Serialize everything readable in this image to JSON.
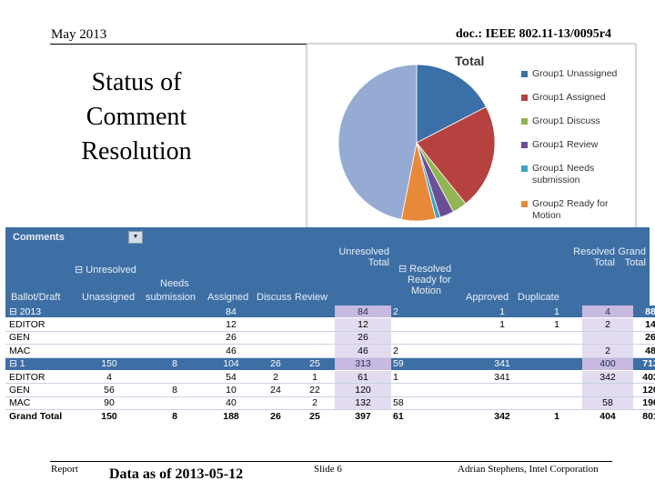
{
  "header": {
    "date": "May 2013",
    "doc": "doc.: IEEE 802.11-13/0095r4"
  },
  "title_lines": [
    "Status of",
    "Comment",
    "Resolution"
  ],
  "pie": {
    "title": "Total",
    "legend": [
      {
        "label": "Group1 Unassigned",
        "color": "#3a6fa8"
      },
      {
        "label": "Group1 Assigned",
        "color": "#b5423e"
      },
      {
        "label": "Group1 Discuss",
        "color": "#93b452"
      },
      {
        "label": "Group1 Review",
        "color": "#6a4f96"
      },
      {
        "label": "Group1 Needs submission",
        "color": "#3ea4bf"
      },
      {
        "label": "Group2 Ready for Motion",
        "color": "#e8893a"
      }
    ],
    "slices": [
      {
        "name": "Group1 Unassigned",
        "value": 150,
        "color": "#3a6fa8"
      },
      {
        "name": "Group1 Assigned",
        "value": 188,
        "color": "#b5423e"
      },
      {
        "name": "Group1 Discuss",
        "value": 26,
        "color": "#93b452"
      },
      {
        "name": "Group1 Review",
        "value": 25,
        "color": "#6a4f96"
      },
      {
        "name": "Group1 Needs submission",
        "value": 8,
        "color": "#3ea4bf"
      },
      {
        "name": "Group2 Ready for Motion",
        "value": 61,
        "color": "#e8893a"
      },
      {
        "name": "Resolved",
        "value": 404,
        "color": "#95abd3"
      }
    ]
  },
  "pivot": {
    "corner": "Comments",
    "unresolved": "Unresolved",
    "unresolved_total": [
      "Unresolved",
      "Total"
    ],
    "resolved_group": [
      "Resolved",
      "Ready for",
      "Motion"
    ],
    "resolved_total": [
      "Resolved",
      "Total"
    ],
    "grand_total": [
      "Grand",
      "Total"
    ],
    "needs": "Needs",
    "columns": [
      "Ballot/Draft",
      "Unassigned",
      "submission",
      "Assigned",
      "Discuss",
      "Review",
      "Approved",
      "Duplicate"
    ],
    "rows": [
      {
        "kind": "grp",
        "label": "2013",
        "c": [
          "",
          "",
          "84",
          "",
          "",
          "84",
          "2",
          "1",
          "1",
          "4",
          "88"
        ]
      },
      {
        "kind": "sub",
        "label": "EDITOR",
        "c": [
          "",
          "",
          "12",
          "",
          "",
          "12",
          "",
          "1",
          "1",
          "2",
          "14"
        ]
      },
      {
        "kind": "sub",
        "label": "GEN",
        "c": [
          "",
          "",
          "26",
          "",
          "",
          "26",
          "",
          "",
          "",
          "",
          "26"
        ]
      },
      {
        "kind": "sub",
        "label": "MAC",
        "c": [
          "",
          "",
          "46",
          "",
          "",
          "46",
          "2",
          "",
          "",
          "2",
          "48"
        ]
      },
      {
        "kind": "grp",
        "label": "1",
        "c": [
          "150",
          "8",
          "104",
          "26",
          "25",
          "313",
          "59",
          "341",
          "",
          "400",
          "713"
        ]
      },
      {
        "kind": "sub",
        "label": "EDITOR",
        "c": [
          "4",
          "",
          "54",
          "2",
          "1",
          "61",
          "1",
          "341",
          "",
          "342",
          "403"
        ]
      },
      {
        "kind": "sub",
        "label": "GEN",
        "c": [
          "56",
          "8",
          "10",
          "24",
          "22",
          "120",
          "",
          "",
          "",
          "",
          "120"
        ]
      },
      {
        "kind": "sub",
        "label": "MAC",
        "c": [
          "90",
          "",
          "40",
          "",
          "2",
          "132",
          "58",
          "",
          "",
          "58",
          "190"
        ]
      },
      {
        "kind": "tot",
        "label": "Grand Total",
        "c": [
          "150",
          "8",
          "188",
          "26",
          "25",
          "397",
          "61",
          "342",
          "1",
          "404",
          "801"
        ]
      }
    ]
  },
  "footer": {
    "left": "Report",
    "center": "Data as of 2013-05-12",
    "slide": "Slide 6",
    "right": "Adrian Stephens, Intel Corporation"
  }
}
